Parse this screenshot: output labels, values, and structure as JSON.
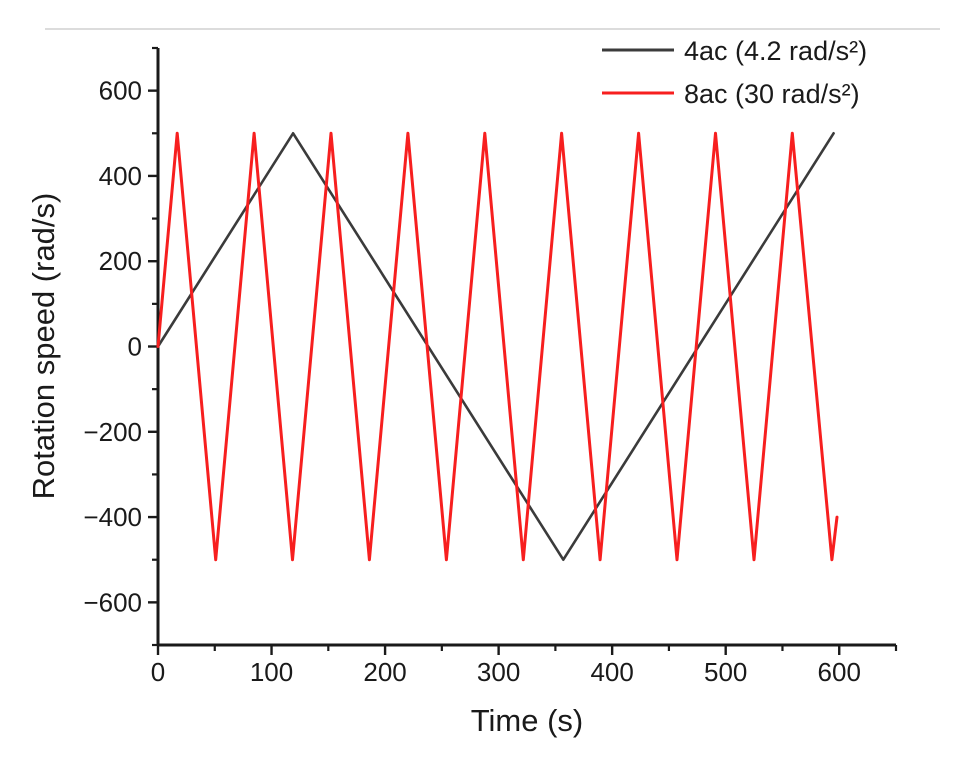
{
  "figure": {
    "background": "#ffffff",
    "top_border_color": "#dcdcdc",
    "axis_color": "#1a1a1a"
  },
  "chart_data": {
    "type": "line",
    "title": "",
    "xlabel": "Time (s)",
    "ylabel": "Rotation speed (rad/s)",
    "xlim": [
      0,
      650
    ],
    "ylim": [
      -700,
      700
    ],
    "x_major_ticks": [
      0,
      100,
      200,
      300,
      400,
      500,
      600
    ],
    "x_minor_step": 50,
    "y_major_ticks": [
      -600,
      -400,
      -200,
      0,
      200,
      400,
      600
    ],
    "y_minor_step": 100,
    "grid": false,
    "legend_position": "top-right",
    "series": [
      {
        "name": "4ac (4.2 rad/s²)",
        "color": "#3b3b3b",
        "stroke_width": 2.6,
        "points": [
          [
            0,
            0
          ],
          [
            119,
            500
          ],
          [
            357,
            -500
          ],
          [
            595,
            500
          ]
        ]
      },
      {
        "name": "8ac (30 rad/s²)",
        "color": "#f71f1f",
        "stroke_width": 3,
        "points": [
          [
            0,
            0
          ],
          [
            16.9,
            500
          ],
          [
            50.8,
            -500
          ],
          [
            84.6,
            500
          ],
          [
            118.5,
            -500
          ],
          [
            152.4,
            500
          ],
          [
            186.2,
            -500
          ],
          [
            220.1,
            500
          ],
          [
            254,
            -500
          ],
          [
            287.8,
            500
          ],
          [
            321.7,
            -500
          ],
          [
            355.5,
            500
          ],
          [
            389.4,
            -500
          ],
          [
            423.3,
            500
          ],
          [
            457.1,
            -500
          ],
          [
            491,
            500
          ],
          [
            524.9,
            -500
          ],
          [
            558.7,
            500
          ],
          [
            593.5,
            -500
          ],
          [
            598,
            -400
          ]
        ]
      }
    ]
  }
}
